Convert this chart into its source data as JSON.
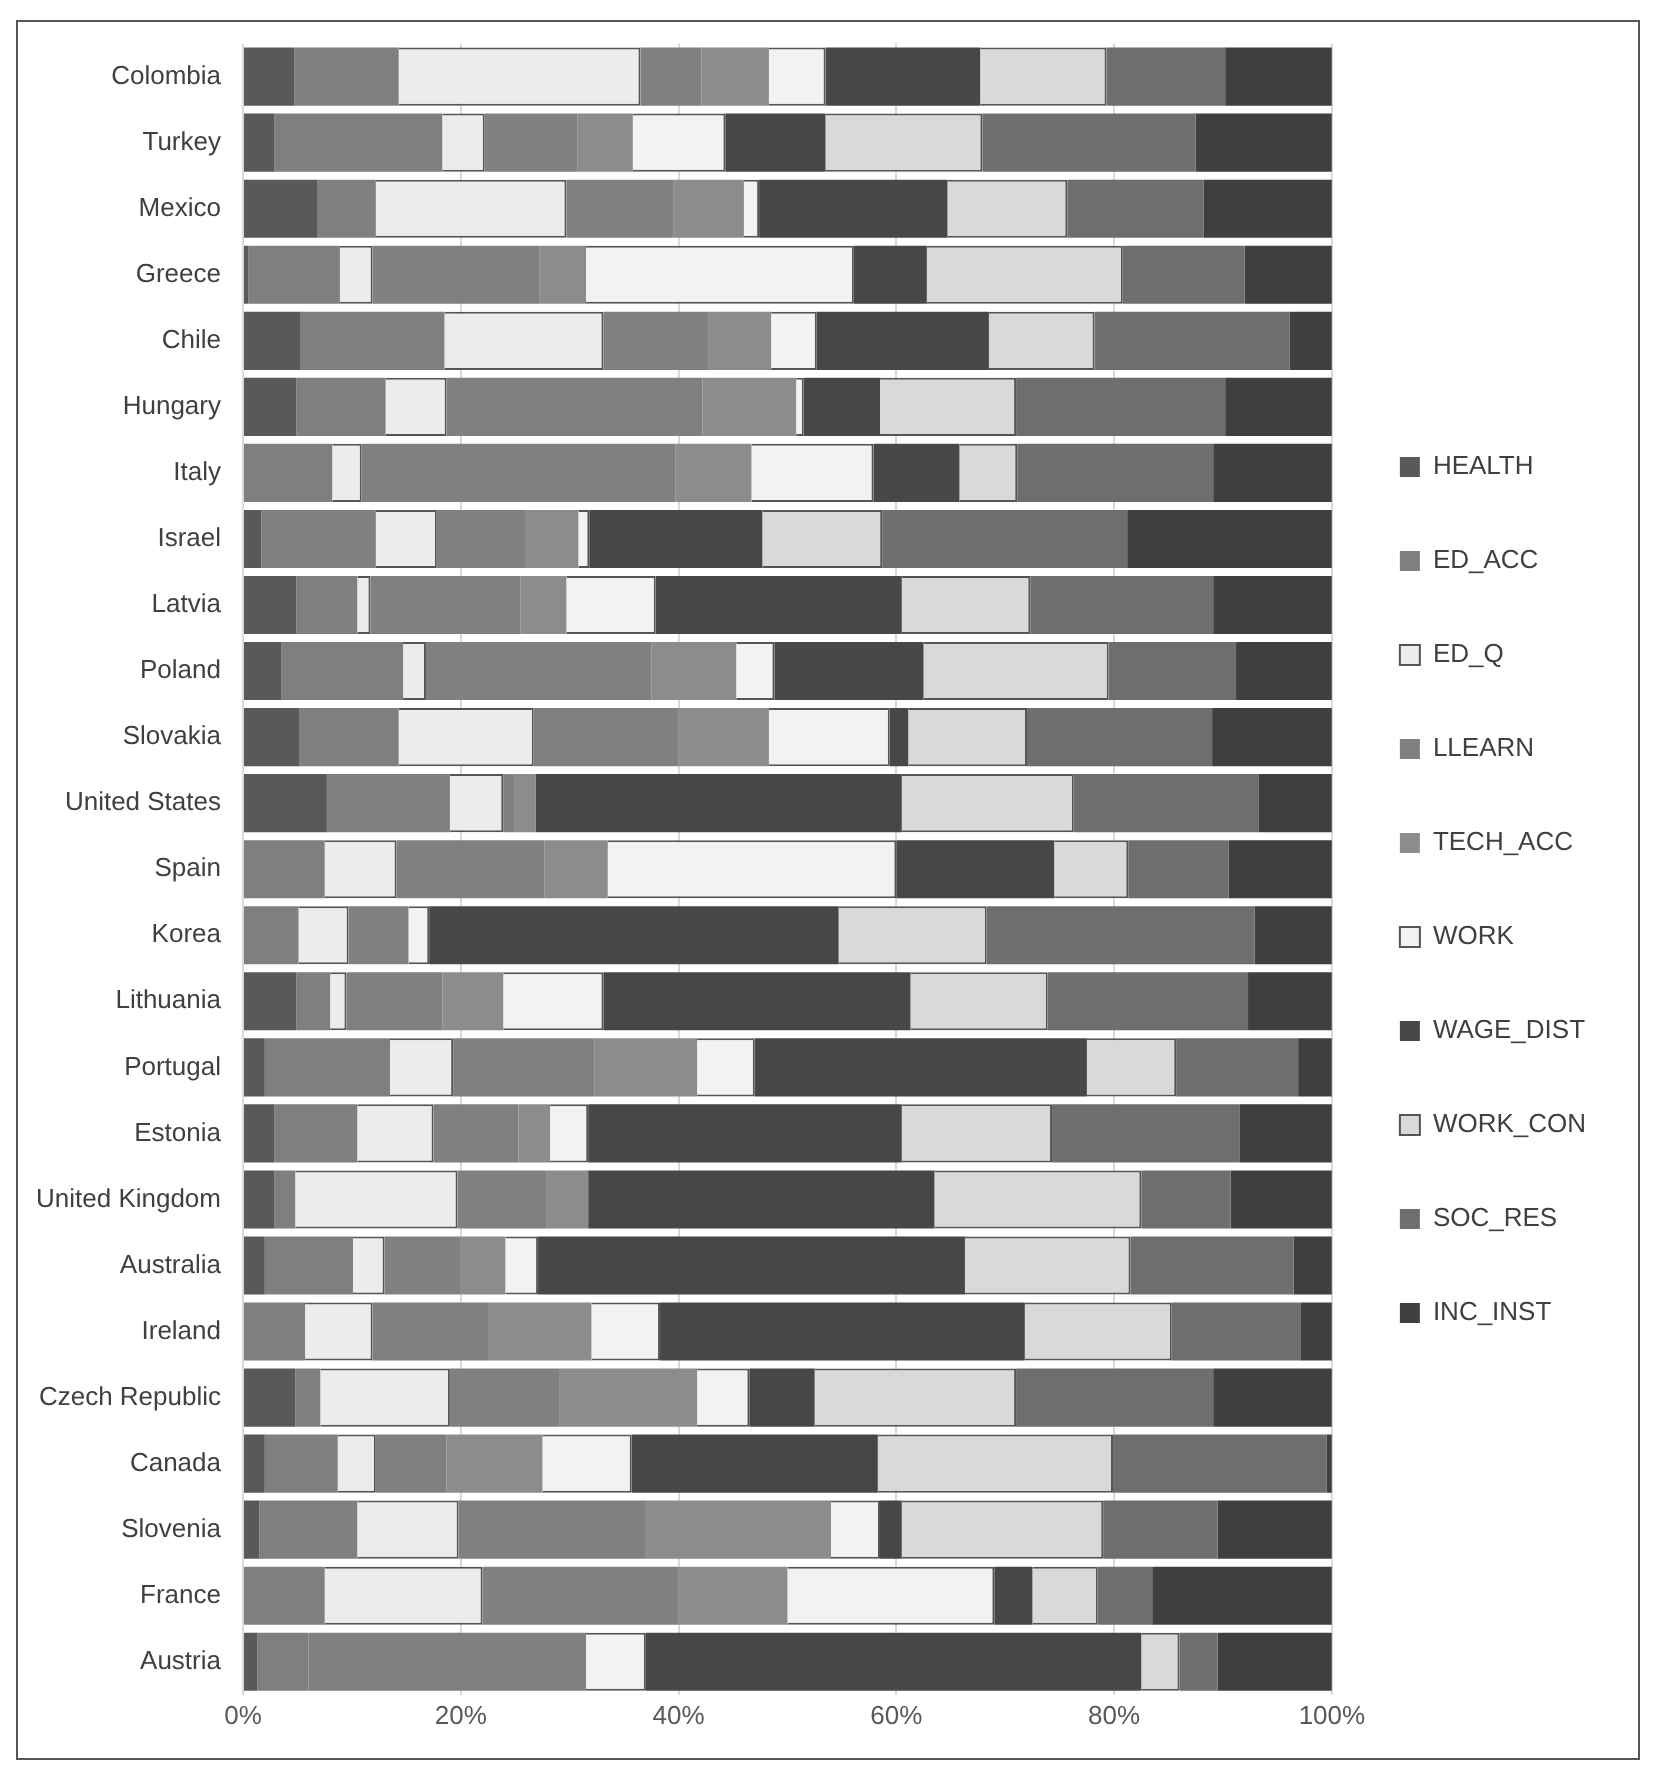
{
  "chart_data": {
    "type": "bar",
    "orientation": "horizontal",
    "stacked": true,
    "categories": [
      "Colombia",
      "Turkey",
      "Mexico",
      "Greece",
      "Chile",
      "Hungary",
      "Italy",
      "Israel",
      "Latvia",
      "Poland",
      "Slovakia",
      "United States",
      "Spain",
      "Korea",
      "Lithuania",
      "Portugal",
      "Estonia",
      "United Kingdom",
      "Australia",
      "Ireland",
      "Czech Republic",
      "Canada",
      "Slovenia",
      "France",
      "Austria"
    ],
    "series": [
      {
        "name": "HEALTH",
        "color": "#595959",
        "values": [
          4.7,
          2.9,
          6.8,
          0.5,
          5.3,
          4.9,
          0,
          1.7,
          4.9,
          3.5,
          5.2,
          7.7,
          0,
          0,
          4.9,
          2.0,
          2.9,
          2.9,
          2.0,
          0,
          4.8,
          2.0,
          1.5,
          0,
          1.3
        ]
      },
      {
        "name": "ED_ACC",
        "color": "#7f7f7f",
        "values": [
          9.6,
          15.4,
          5.4,
          8.4,
          13.2,
          8.2,
          8.2,
          10.5,
          5.6,
          11.2,
          9.1,
          11.3,
          7.5,
          5.1,
          3.1,
          11.5,
          7.6,
          1.9,
          8.1,
          5.7,
          2.3,
          6.7,
          9.0,
          7.5,
          4.7
        ]
      },
      {
        "name": "ED_Q",
        "color": "#ececec",
        "values": [
          22.2,
          3.9,
          17.5,
          3.0,
          14.6,
          5.6,
          2.7,
          5.6,
          1.2,
          2.1,
          12.4,
          4.9,
          6.6,
          4.6,
          1.5,
          5.8,
          7.0,
          14.9,
          2.9,
          6.2,
          11.9,
          3.5,
          9.3,
          14.5,
          0
        ]
      },
      {
        "name": "LLEARN",
        "color": "#808080",
        "values": [
          5.6,
          8.5,
          9.8,
          15.3,
          9.6,
          23.5,
          28.8,
          8.1,
          13.8,
          20.7,
          13.3,
          1.0,
          13.6,
          5.5,
          8.8,
          13.0,
          7.8,
          8.2,
          7.0,
          10.6,
          10.1,
          6.5,
          17.2,
          18.0,
          25.5
        ]
      },
      {
        "name": "TECH_ACC",
        "color": "#8c8c8c",
        "values": [
          6.2,
          5.1,
          6.5,
          4.3,
          5.8,
          8.6,
          7.0,
          4.9,
          4.2,
          7.8,
          8.3,
          2.0,
          5.8,
          0,
          5.6,
          9.4,
          2.9,
          3.8,
          4.1,
          9.5,
          12.6,
          8.8,
          17.0,
          10.0,
          0
        ]
      },
      {
        "name": "WORK",
        "color": "#f2f2f2",
        "values": [
          5.2,
          8.5,
          1.4,
          24.6,
          4.2,
          0.7,
          11.2,
          1.0,
          8.2,
          3.5,
          11.1,
          0,
          26.5,
          1.9,
          9.2,
          5.3,
          3.5,
          0,
          3.0,
          6.3,
          4.8,
          8.2,
          4.5,
          19.0,
          5.5
        ]
      },
      {
        "name": "WAGE_DIST",
        "color": "#474747",
        "values": [
          14.2,
          9.2,
          17.3,
          6.7,
          15.8,
          7.0,
          7.9,
          15.9,
          22.6,
          13.7,
          1.7,
          33.6,
          14.5,
          37.6,
          28.2,
          30.5,
          28.8,
          31.8,
          39.2,
          33.5,
          6.0,
          22.6,
          2.0,
          3.5,
          45.5
        ]
      },
      {
        "name": "WORK_CON",
        "color": "#d9d9d9",
        "values": [
          11.6,
          14.4,
          11.0,
          18.0,
          9.7,
          12.5,
          5.3,
          11.0,
          11.8,
          17.0,
          10.9,
          15.8,
          6.8,
          13.6,
          12.6,
          8.2,
          13.8,
          19.0,
          15.2,
          13.5,
          18.5,
          21.6,
          18.5,
          6.0,
          3.5
        ]
      },
      {
        "name": "SOC_RES",
        "color": "#6e6e6e",
        "values": [
          10.9,
          19.6,
          12.5,
          11.2,
          17.9,
          19.2,
          18.0,
          22.5,
          16.8,
          11.7,
          17.0,
          17.0,
          9.2,
          24.6,
          18.4,
          11.2,
          17.2,
          8.2,
          15.0,
          11.8,
          18.1,
          19.6,
          10.5,
          5.0,
          3.5
        ]
      },
      {
        "name": "INC_INST",
        "color": "#3f3f3f",
        "values": [
          9.8,
          12.5,
          11.8,
          8.0,
          3.9,
          9.8,
          10.9,
          18.8,
          10.9,
          8.8,
          11.0,
          6.7,
          9.5,
          7.1,
          7.7,
          3.1,
          8.5,
          9.3,
          3.5,
          2.9,
          10.9,
          0.5,
          10.5,
          16.5,
          10.5
        ]
      }
    ],
    "xlim": [
      0,
      100
    ],
    "xticks": [
      {
        "value": 0,
        "label": "0%"
      },
      {
        "value": 20,
        "label": "20%"
      },
      {
        "value": 40,
        "label": "40%"
      },
      {
        "value": 60,
        "label": "60%"
      },
      {
        "value": 80,
        "label": "80%"
      },
      {
        "value": 100,
        "label": "100%"
      }
    ],
    "grid": "x",
    "legend": "right"
  }
}
